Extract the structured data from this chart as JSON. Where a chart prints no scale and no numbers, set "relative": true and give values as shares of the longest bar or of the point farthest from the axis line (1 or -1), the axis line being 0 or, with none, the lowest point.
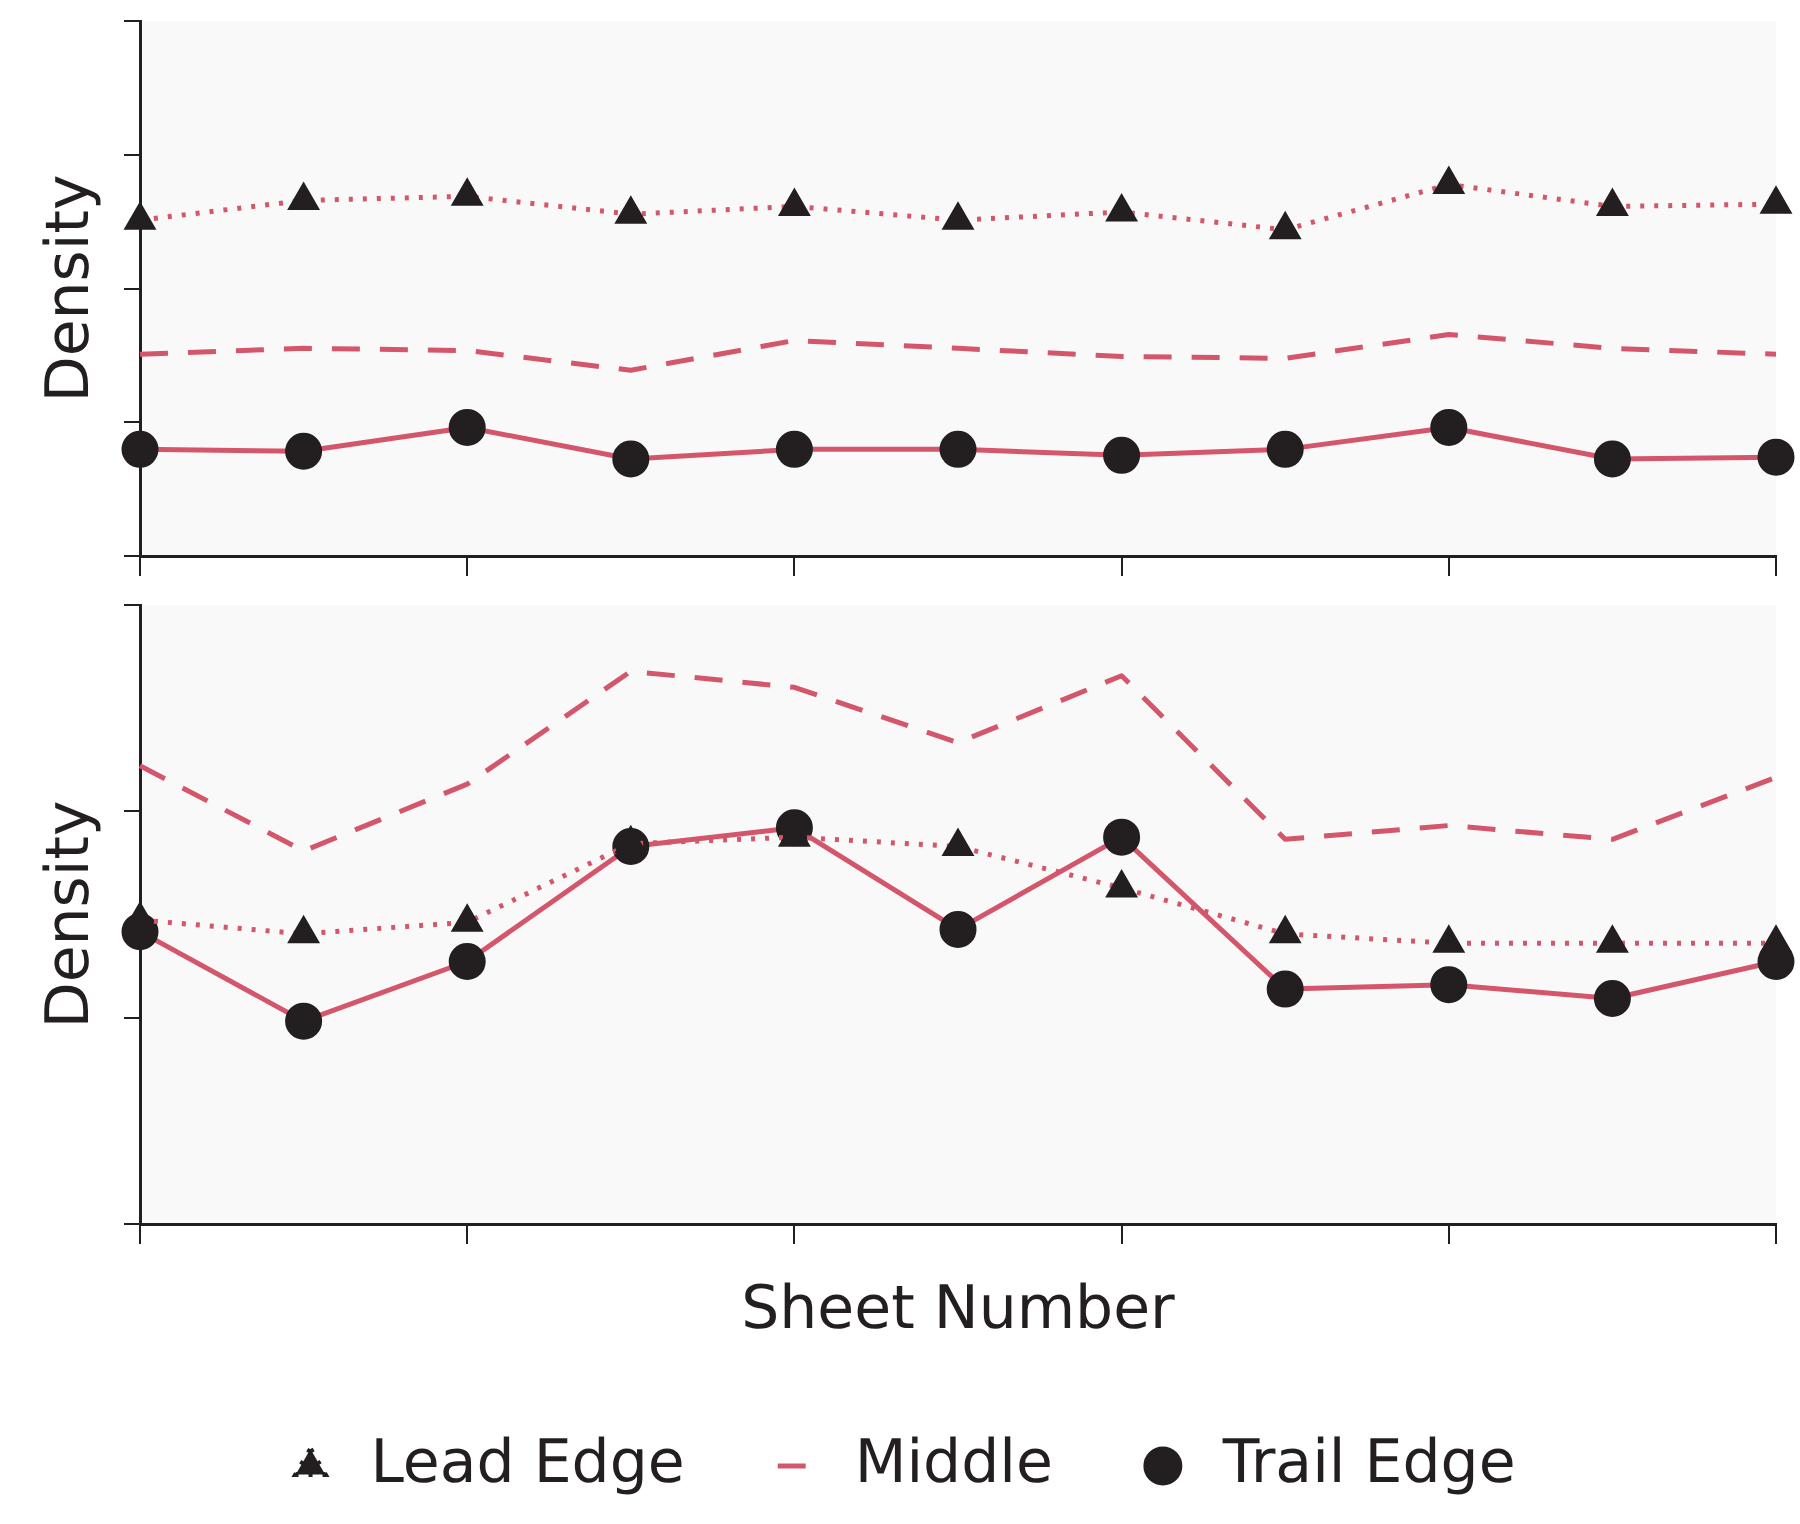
{
  "chart_data": [
    {
      "type": "line",
      "ylabel": "Density",
      "relative": true,
      "categories": [
        null,
        null,
        null,
        null,
        null,
        null,
        null,
        null,
        null,
        null,
        null
      ],
      "tick_labels": false,
      "grid": false,
      "series": [
        {
          "color": "#d4566b",
          "marker": "triangle",
          "line_style": "dotted",
          "values": [
            0.904,
            0.957,
            0.968,
            0.92,
            0.941,
            0.904,
            0.926,
            0.878,
            1,
            0.941,
            0.947
          ]
        },
        {
          "color": "#d4566b",
          "marker": "none",
          "line_style": "dashed",
          "values": [
            0.543,
            0.559,
            0.553,
            0.5,
            0.58,
            0.559,
            0.537,
            0.532,
            0.596,
            0.559,
            0.543
          ]
        },
        {
          "color": "#d4566b",
          "marker": "circle",
          "line_style": "solid",
          "values": [
            0.287,
            0.282,
            0.346,
            0.261,
            0.287,
            0.287,
            0.271,
            0.287,
            0.346,
            0.261,
            0.266
          ]
        }
      ]
    },
    {
      "type": "line",
      "ylabel": "Density",
      "xlabel": "Sheet Number",
      "relative": true,
      "categories": [
        null,
        null,
        null,
        null,
        null,
        null,
        null,
        null,
        null,
        null,
        null
      ],
      "tick_labels": false,
      "grid": false,
      "legend": "bottom",
      "series": [
        {
          "name": "Lead Edge",
          "color": "#d4566b",
          "marker": "triangle",
          "line_style": "dotted",
          "values": [
            0.55,
            0.525,
            0.546,
            0.688,
            0.7,
            0.683,
            0.608,
            0.525,
            0.508,
            0.508,
            0.508
          ]
        },
        {
          "name": "Middle",
          "color": "#d4566b",
          "marker": "none",
          "line_style": "dashed",
          "values": [
            0.829,
            0.675,
            0.796,
            1,
            0.971,
            0.871,
            0.992,
            0.696,
            0.721,
            0.696,
            0.808
          ]
        },
        {
          "name": "Trail Edge",
          "color": "#d4566b",
          "marker": "circle",
          "line_style": "solid",
          "values": [
            0.529,
            0.367,
            0.475,
            0.683,
            0.717,
            0.533,
            0.7,
            0.425,
            0.433,
            0.408,
            0.475
          ]
        }
      ]
    }
  ]
}
